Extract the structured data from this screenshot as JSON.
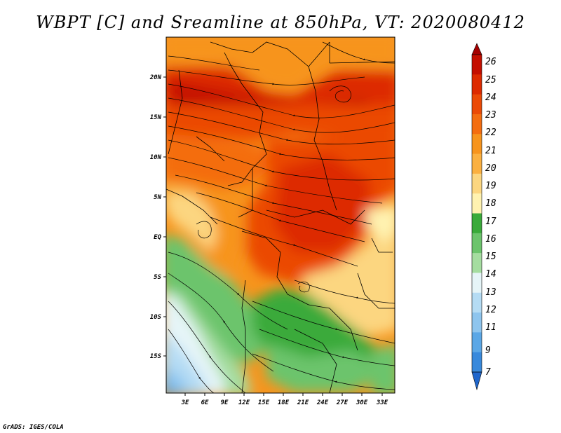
{
  "title": "WBPT [C] and Sreamline at 850hPa, VT: 2020080412",
  "map": {
    "lat_labels": [
      "20N",
      "15N",
      "10N",
      "5N",
      "EQ",
      "5S",
      "10S",
      "15S"
    ],
    "lon_labels": [
      "3E",
      "6E",
      "9E",
      "12E",
      "15E",
      "18E",
      "21E",
      "24E",
      "27E",
      "30E",
      "33E"
    ]
  },
  "colorbar": {
    "levels": [
      "26",
      "25",
      "24",
      "23",
      "22",
      "21",
      "20",
      "19",
      "18",
      "17",
      "16",
      "15",
      "14",
      "13",
      "12",
      "11",
      "9",
      "7"
    ],
    "colors": [
      "#a50000",
      "#c40e00",
      "#dd2a00",
      "#eb4a06",
      "#f46d10",
      "#f7941d",
      "#fbb040",
      "#fcd680",
      "#fff2b0",
      "#3aaa3a",
      "#6cc46c",
      "#a5dda0",
      "#e6f5f8",
      "#b5dcf4",
      "#8ec5ee",
      "#5ba7e6",
      "#3889dc",
      "#1f66cc"
    ]
  },
  "credit": "GrADS: IGES/COLA"
}
